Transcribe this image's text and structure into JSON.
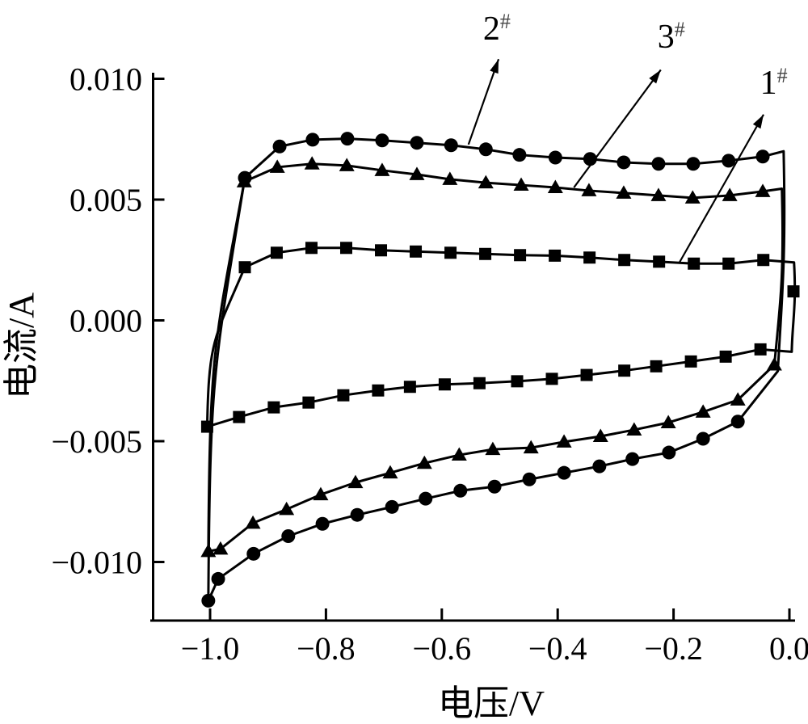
{
  "figure": {
    "background": "#ffffff",
    "ink_color": "#000000",
    "xlabel": "电压/V",
    "ylabel": "电流/A"
  },
  "chart_data": {
    "type": "line",
    "subtype": "cyclic-voltammogram",
    "title": "",
    "xlabel": "电压/V",
    "ylabel": "电流/A",
    "xlim": [
      -1.1,
      0.01
    ],
    "ylim": [
      -0.0125,
      0.0105
    ],
    "grid": false,
    "legend_position": "arrow-annotations-inside-plot",
    "x_ticks": [
      {
        "label": "−1.0",
        "value": -1.0
      },
      {
        "label": "−0.8",
        "value": -0.8
      },
      {
        "label": "−0.6",
        "value": -0.6
      },
      {
        "label": "−0.4",
        "value": -0.4
      },
      {
        "label": "−0.2",
        "value": -0.2
      },
      {
        "label": "0.0",
        "value": 0.0
      }
    ],
    "y_ticks": [
      {
        "label": "0.010",
        "value": 0.01
      },
      {
        "label": "0.005",
        "value": 0.005
      },
      {
        "label": "0.000",
        "value": 0.0
      },
      {
        "label": "−0.005",
        "value": -0.005
      },
      {
        "label": "−0.010",
        "value": -0.01
      }
    ],
    "series": [
      {
        "name": "1#",
        "marker": "square",
        "color": "#000000",
        "annotation": {
          "num": "1",
          "sup": "#",
          "text_at": [
            -0.027,
            0.0098
          ],
          "arrow_from": [
            -0.191,
            0.00235
          ],
          "arrow_to": [
            -0.0446,
            0.00852
          ]
        },
        "upper_branch": {
          "x": [
            -0.94,
            -0.885,
            -0.825,
            -0.765,
            -0.705,
            -0.645,
            -0.585,
            -0.525,
            -0.465,
            -0.405,
            -0.345,
            -0.285,
            -0.225,
            -0.165,
            -0.105,
            -0.045
          ],
          "y": [
            0.0022,
            0.0028,
            0.003,
            0.003,
            0.0029,
            0.00285,
            0.0028,
            0.00275,
            0.0027,
            0.00268,
            0.0026,
            0.0025,
            0.00243,
            0.00235,
            0.00235,
            0.0025
          ]
        },
        "upper_end": [
          0.008,
          0.0024
        ],
        "right_edge_marker": [
          0.007,
          0.0012
        ],
        "lower_end": [
          0.004,
          -0.0013
        ],
        "lower_branch": {
          "x": [
            -1.005,
            -0.95,
            -0.89,
            -0.83,
            -0.77,
            -0.71,
            -0.655,
            -0.595,
            -0.535,
            -0.47,
            -0.41,
            -0.35,
            -0.285,
            -0.23,
            -0.17,
            -0.11,
            -0.05
          ],
          "y": [
            -0.0044,
            -0.004,
            -0.0036,
            -0.0034,
            -0.0031,
            -0.0029,
            -0.00275,
            -0.00265,
            -0.0026,
            -0.00252,
            -0.00242,
            -0.00226,
            -0.00208,
            -0.0019,
            -0.0017,
            -0.0015,
            -0.0012
          ]
        }
      },
      {
        "name": "2#",
        "marker": "circle",
        "color": "#000000",
        "annotation": {
          "num": "2",
          "sup": "#",
          "text_at": [
            -0.505,
            0.01205
          ],
          "arrow_from": [
            -0.554,
            0.00728
          ],
          "arrow_to": [
            -0.502,
            0.01081
          ]
        },
        "upper_branch": {
          "x": [
            -0.94,
            -0.88,
            -0.823,
            -0.763,
            -0.703,
            -0.643,
            -0.584,
            -0.524,
            -0.466,
            -0.404,
            -0.344,
            -0.286,
            -0.226,
            -0.166,
            -0.105,
            -0.046
          ],
          "y": [
            0.0059,
            0.0072,
            0.00748,
            0.00752,
            0.00745,
            0.00735,
            0.00725,
            0.00708,
            0.00685,
            0.00674,
            0.00668,
            0.00654,
            0.00648,
            0.00648,
            0.00661,
            0.00678
          ]
        },
        "upper_end": [
          -0.01,
          0.007
        ],
        "right_edge_marker": null,
        "lower_end": [
          -0.02,
          -0.0021
        ],
        "lower_branch": {
          "x": [
            -1.003,
            -0.986,
            -0.925,
            -0.865,
            -0.806,
            -0.746,
            -0.686,
            -0.628,
            -0.568,
            -0.509,
            -0.449,
            -0.389,
            -0.328,
            -0.271,
            -0.208,
            -0.149,
            -0.089
          ],
          "y": [
            -0.0116,
            -0.0107,
            -0.00966,
            -0.00893,
            -0.00842,
            -0.00805,
            -0.00772,
            -0.00738,
            -0.00705,
            -0.00688,
            -0.00658,
            -0.00631,
            -0.00604,
            -0.00574,
            -0.00547,
            -0.0049,
            -0.00419
          ]
        }
      },
      {
        "name": "3#",
        "marker": "triangle",
        "color": "#000000",
        "annotation": {
          "num": "3",
          "sup": "#",
          "text_at": [
            -0.204,
            0.01171
          ],
          "arrow_from": [
            -0.372,
            0.0055
          ],
          "arrow_to": [
            -0.222,
            0.01037
          ]
        },
        "upper_branch": {
          "x": [
            -0.941,
            -0.884,
            -0.824,
            -0.764,
            -0.703,
            -0.643,
            -0.586,
            -0.524,
            -0.463,
            -0.404,
            -0.346,
            -0.286,
            -0.226,
            -0.167,
            -0.103,
            -0.046
          ],
          "y": [
            0.00574,
            0.00634,
            0.00648,
            0.00641,
            0.00621,
            0.00604,
            0.00584,
            0.0057,
            0.0056,
            0.0055,
            0.00537,
            0.00527,
            0.00517,
            0.00507,
            0.00517,
            0.00534
          ]
        },
        "upper_end": [
          -0.013,
          0.00545
        ],
        "right_edge_marker": null,
        "lower_end": [
          -0.026,
          -0.00184
        ],
        "lower_branch": {
          "x": [
            -1.003,
            -0.982,
            -0.926,
            -0.868,
            -0.809,
            -0.749,
            -0.689,
            -0.63,
            -0.57,
            -0.512,
            -0.446,
            -0.389,
            -0.326,
            -0.268,
            -0.209,
            -0.149,
            -0.089,
            -0.026
          ],
          "y": [
            -0.00956,
            -0.00946,
            -0.00839,
            -0.00782,
            -0.00721,
            -0.00671,
            -0.00631,
            -0.00591,
            -0.00557,
            -0.00534,
            -0.00527,
            -0.00503,
            -0.0048,
            -0.00453,
            -0.00423,
            -0.00379,
            -0.00329,
            -0.00184
          ]
        }
      }
    ]
  }
}
